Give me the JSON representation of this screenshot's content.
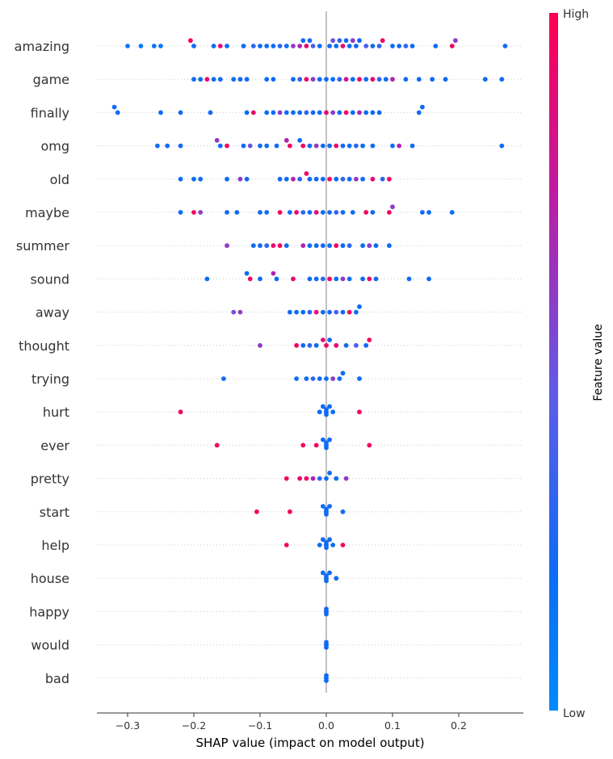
{
  "chart_data": {
    "type": "scatter",
    "subtype": "shap-beeswarm",
    "xlabel": "SHAP value (impact on model output)",
    "xlim": [
      -0.35,
      0.29
    ],
    "xticks": [
      -0.3,
      -0.2,
      -0.1,
      0.0,
      0.1,
      0.2
    ],
    "xtick_labels": [
      "−0.3",
      "−0.2",
      "−0.1",
      "0.0",
      "0.1",
      "0.2"
    ],
    "colorbar": {
      "label": "Feature value",
      "high_label": "High",
      "low_label": "Low",
      "low_color": "#008bfb",
      "high_color": "#ff0052"
    },
    "features": [
      {
        "name": "amazing",
        "points": [
          [
            -0.3,
            0.1
          ],
          [
            -0.28,
            0.1
          ],
          [
            -0.26,
            0.15
          ],
          [
            -0.25,
            0.1
          ],
          [
            -0.205,
            0.95
          ],
          [
            -0.2,
            0.2
          ],
          [
            -0.17,
            0.2
          ],
          [
            -0.16,
            0.9
          ],
          [
            -0.15,
            0.2
          ],
          [
            -0.125,
            0.2
          ],
          [
            -0.11,
            0.3
          ],
          [
            -0.1,
            0.2
          ],
          [
            -0.09,
            0.2
          ],
          [
            -0.08,
            0.2
          ],
          [
            -0.07,
            0.3
          ],
          [
            -0.06,
            0.2
          ],
          [
            -0.05,
            0.6
          ],
          [
            -0.04,
            0.7
          ],
          [
            -0.035,
            0.2
          ],
          [
            -0.03,
            0.9
          ],
          [
            -0.025,
            0.2
          ],
          [
            -0.02,
            0.4
          ],
          [
            -0.01,
            0.2
          ],
          [
            0.005,
            0.2
          ],
          [
            0.01,
            0.5
          ],
          [
            0.015,
            0.2
          ],
          [
            0.02,
            0.3
          ],
          [
            0.025,
            0.9
          ],
          [
            0.03,
            0.2
          ],
          [
            0.035,
            0.2
          ],
          [
            0.04,
            0.6
          ],
          [
            0.045,
            0.2
          ],
          [
            0.05,
            0.2
          ],
          [
            0.06,
            0.4
          ],
          [
            0.07,
            0.2
          ],
          [
            0.08,
            0.3
          ],
          [
            0.085,
            0.9
          ],
          [
            0.1,
            0.2
          ],
          [
            0.11,
            0.2
          ],
          [
            0.12,
            0.3
          ],
          [
            0.13,
            0.2
          ],
          [
            0.165,
            0.2
          ],
          [
            0.19,
            0.95
          ],
          [
            0.195,
            0.6
          ],
          [
            0.27,
            0.2
          ]
        ]
      },
      {
        "name": "game",
        "points": [
          [
            -0.2,
            0.2
          ],
          [
            -0.19,
            0.2
          ],
          [
            -0.18,
            0.9
          ],
          [
            -0.17,
            0.2
          ],
          [
            -0.16,
            0.2
          ],
          [
            -0.14,
            0.2
          ],
          [
            -0.13,
            0.2
          ],
          [
            -0.12,
            0.2
          ],
          [
            -0.09,
            0.2
          ],
          [
            -0.08,
            0.2
          ],
          [
            -0.05,
            0.2
          ],
          [
            -0.04,
            0.3
          ],
          [
            -0.03,
            0.95
          ],
          [
            -0.02,
            0.6
          ],
          [
            -0.01,
            0.2
          ],
          [
            0.0,
            0.2
          ],
          [
            0.01,
            0.2
          ],
          [
            0.02,
            0.3
          ],
          [
            0.03,
            0.8
          ],
          [
            0.04,
            0.2
          ],
          [
            0.05,
            0.9
          ],
          [
            0.06,
            0.2
          ],
          [
            0.07,
            0.9
          ],
          [
            0.08,
            0.3
          ],
          [
            0.09,
            0.2
          ],
          [
            0.1,
            0.7
          ],
          [
            0.12,
            0.2
          ],
          [
            0.14,
            0.2
          ],
          [
            0.16,
            0.2
          ],
          [
            0.18,
            0.2
          ],
          [
            0.24,
            0.2
          ],
          [
            0.265,
            0.2
          ]
        ]
      },
      {
        "name": "finally",
        "points": [
          [
            -0.32,
            0.2
          ],
          [
            -0.315,
            0.2
          ],
          [
            -0.25,
            0.2
          ],
          [
            -0.22,
            0.2
          ],
          [
            -0.175,
            0.2
          ],
          [
            -0.12,
            0.2
          ],
          [
            -0.11,
            0.9
          ],
          [
            -0.09,
            0.2
          ],
          [
            -0.08,
            0.2
          ],
          [
            -0.07,
            0.6
          ],
          [
            -0.06,
            0.2
          ],
          [
            -0.05,
            0.2
          ],
          [
            -0.04,
            0.2
          ],
          [
            -0.03,
            0.3
          ],
          [
            -0.02,
            0.2
          ],
          [
            -0.01,
            0.2
          ],
          [
            0.0,
            0.9
          ],
          [
            0.01,
            0.6
          ],
          [
            0.02,
            0.2
          ],
          [
            0.03,
            0.95
          ],
          [
            0.04,
            0.2
          ],
          [
            0.05,
            0.7
          ],
          [
            0.06,
            0.2
          ],
          [
            0.07,
            0.2
          ],
          [
            0.08,
            0.2
          ],
          [
            0.14,
            0.2
          ],
          [
            0.145,
            0.2
          ]
        ]
      },
      {
        "name": "omg",
        "points": [
          [
            -0.255,
            0.2
          ],
          [
            -0.24,
            0.2
          ],
          [
            -0.22,
            0.2
          ],
          [
            -0.165,
            0.6
          ],
          [
            -0.16,
            0.2
          ],
          [
            -0.15,
            0.95
          ],
          [
            -0.125,
            0.2
          ],
          [
            -0.115,
            0.5
          ],
          [
            -0.1,
            0.2
          ],
          [
            -0.09,
            0.2
          ],
          [
            -0.075,
            0.2
          ],
          [
            -0.06,
            0.7
          ],
          [
            -0.055,
            0.95
          ],
          [
            -0.04,
            0.2
          ],
          [
            -0.035,
            0.95
          ],
          [
            -0.025,
            0.2
          ],
          [
            -0.015,
            0.6
          ],
          [
            -0.005,
            0.2
          ],
          [
            0.005,
            0.2
          ],
          [
            0.015,
            0.9
          ],
          [
            0.025,
            0.2
          ],
          [
            0.035,
            0.2
          ],
          [
            0.045,
            0.3
          ],
          [
            0.055,
            0.2
          ],
          [
            0.07,
            0.2
          ],
          [
            0.1,
            0.2
          ],
          [
            0.11,
            0.7
          ],
          [
            0.13,
            0.2
          ],
          [
            0.265,
            0.2
          ]
        ]
      },
      {
        "name": "old",
        "points": [
          [
            -0.22,
            0.2
          ],
          [
            -0.2,
            0.2
          ],
          [
            -0.19,
            0.2
          ],
          [
            -0.15,
            0.2
          ],
          [
            -0.13,
            0.6
          ],
          [
            -0.12,
            0.2
          ],
          [
            -0.07,
            0.2
          ],
          [
            -0.06,
            0.2
          ],
          [
            -0.05,
            0.7
          ],
          [
            -0.04,
            0.3
          ],
          [
            -0.03,
            0.95
          ],
          [
            -0.025,
            0.2
          ],
          [
            -0.015,
            0.2
          ],
          [
            -0.005,
            0.2
          ],
          [
            0.005,
            0.95
          ],
          [
            0.015,
            0.2
          ],
          [
            0.025,
            0.3
          ],
          [
            0.035,
            0.2
          ],
          [
            0.045,
            0.6
          ],
          [
            0.055,
            0.2
          ],
          [
            0.07,
            0.9
          ],
          [
            0.085,
            0.3
          ],
          [
            0.095,
            0.95
          ]
        ]
      },
      {
        "name": "maybe",
        "points": [
          [
            -0.22,
            0.2
          ],
          [
            -0.2,
            0.95
          ],
          [
            -0.19,
            0.6
          ],
          [
            -0.15,
            0.2
          ],
          [
            -0.135,
            0.2
          ],
          [
            -0.1,
            0.2
          ],
          [
            -0.09,
            0.2
          ],
          [
            -0.07,
            0.95
          ],
          [
            -0.055,
            0.2
          ],
          [
            -0.045,
            0.9
          ],
          [
            -0.035,
            0.3
          ],
          [
            -0.025,
            0.2
          ],
          [
            -0.015,
            0.9
          ],
          [
            -0.005,
            0.2
          ],
          [
            0.005,
            0.2
          ],
          [
            0.015,
            0.3
          ],
          [
            0.025,
            0.2
          ],
          [
            0.04,
            0.2
          ],
          [
            0.06,
            0.95
          ],
          [
            0.07,
            0.2
          ],
          [
            0.095,
            0.95
          ],
          [
            0.1,
            0.6
          ],
          [
            0.145,
            0.2
          ],
          [
            0.155,
            0.2
          ],
          [
            0.19,
            0.2
          ]
        ]
      },
      {
        "name": "summer",
        "points": [
          [
            -0.15,
            0.6
          ],
          [
            -0.11,
            0.2
          ],
          [
            -0.1,
            0.2
          ],
          [
            -0.09,
            0.3
          ],
          [
            -0.08,
            0.9
          ],
          [
            -0.07,
            0.95
          ],
          [
            -0.06,
            0.2
          ],
          [
            -0.035,
            0.7
          ],
          [
            -0.025,
            0.2
          ],
          [
            -0.015,
            0.2
          ],
          [
            -0.005,
            0.2
          ],
          [
            0.005,
            0.2
          ],
          [
            0.015,
            0.95
          ],
          [
            0.025,
            0.2
          ],
          [
            0.035,
            0.3
          ],
          [
            0.055,
            0.2
          ],
          [
            0.065,
            0.6
          ],
          [
            0.075,
            0.2
          ],
          [
            0.095,
            0.2
          ]
        ]
      },
      {
        "name": "sound",
        "points": [
          [
            -0.18,
            0.2
          ],
          [
            -0.12,
            0.2
          ],
          [
            -0.115,
            0.95
          ],
          [
            -0.1,
            0.2
          ],
          [
            -0.08,
            0.7
          ],
          [
            -0.075,
            0.2
          ],
          [
            -0.05,
            0.9
          ],
          [
            -0.025,
            0.2
          ],
          [
            -0.015,
            0.2
          ],
          [
            -0.005,
            0.3
          ],
          [
            0.005,
            0.95
          ],
          [
            0.015,
            0.2
          ],
          [
            0.025,
            0.6
          ],
          [
            0.035,
            0.2
          ],
          [
            0.055,
            0.2
          ],
          [
            0.065,
            0.9
          ],
          [
            0.075,
            0.2
          ],
          [
            0.125,
            0.2
          ],
          [
            0.155,
            0.2
          ]
        ]
      },
      {
        "name": "away",
        "points": [
          [
            -0.14,
            0.5
          ],
          [
            -0.13,
            0.6
          ],
          [
            -0.055,
            0.2
          ],
          [
            -0.045,
            0.2
          ],
          [
            -0.035,
            0.2
          ],
          [
            -0.025,
            0.3
          ],
          [
            -0.015,
            0.9
          ],
          [
            -0.005,
            0.2
          ],
          [
            0.005,
            0.2
          ],
          [
            0.015,
            0.4
          ],
          [
            0.025,
            0.2
          ],
          [
            0.035,
            0.95
          ],
          [
            0.045,
            0.2
          ],
          [
            0.05,
            0.2
          ]
        ]
      },
      {
        "name": "thought",
        "points": [
          [
            -0.1,
            0.6
          ],
          [
            -0.045,
            0.95
          ],
          [
            -0.035,
            0.2
          ],
          [
            -0.025,
            0.3
          ],
          [
            -0.015,
            0.2
          ],
          [
            -0.005,
            0.9
          ],
          [
            0.0,
            0.95
          ],
          [
            0.005,
            0.2
          ],
          [
            0.015,
            0.9
          ],
          [
            0.03,
            0.2
          ],
          [
            0.045,
            0.4
          ],
          [
            0.06,
            0.2
          ],
          [
            0.065,
            0.95
          ]
        ]
      },
      {
        "name": "trying",
        "points": [
          [
            -0.155,
            0.2
          ],
          [
            -0.045,
            0.2
          ],
          [
            -0.03,
            0.2
          ],
          [
            -0.02,
            0.3
          ],
          [
            -0.01,
            0.2
          ],
          [
            0.0,
            0.2
          ],
          [
            0.01,
            0.6
          ],
          [
            0.02,
            0.2
          ],
          [
            0.025,
            0.2
          ],
          [
            0.05,
            0.2
          ]
        ]
      },
      {
        "name": "hurt",
        "points": [
          [
            -0.22,
            0.95
          ],
          [
            -0.01,
            0.2
          ],
          [
            -0.005,
            0.2
          ],
          [
            0.0,
            0.2
          ],
          [
            0.005,
            0.2
          ],
          [
            0.01,
            0.2
          ],
          [
            0.05,
            0.95
          ]
        ]
      },
      {
        "name": "ever",
        "points": [
          [
            -0.165,
            0.95
          ],
          [
            -0.035,
            0.95
          ],
          [
            -0.015,
            0.95
          ],
          [
            -0.005,
            0.2
          ],
          [
            0.0,
            0.2
          ],
          [
            0.005,
            0.2
          ],
          [
            0.065,
            0.95
          ]
        ]
      },
      {
        "name": "pretty",
        "points": [
          [
            -0.06,
            0.95
          ],
          [
            -0.04,
            0.9
          ],
          [
            -0.03,
            0.95
          ],
          [
            -0.02,
            0.7
          ],
          [
            -0.01,
            0.3
          ],
          [
            0.0,
            0.2
          ],
          [
            0.005,
            0.2
          ],
          [
            0.015,
            0.2
          ],
          [
            0.03,
            0.6
          ]
        ]
      },
      {
        "name": "start",
        "points": [
          [
            -0.105,
            0.95
          ],
          [
            -0.055,
            0.95
          ],
          [
            -0.005,
            0.2
          ],
          [
            0.0,
            0.2
          ],
          [
            0.005,
            0.2
          ],
          [
            0.025,
            0.2
          ]
        ]
      },
      {
        "name": "help",
        "points": [
          [
            -0.06,
            0.95
          ],
          [
            -0.01,
            0.2
          ],
          [
            -0.005,
            0.2
          ],
          [
            0.0,
            0.2
          ],
          [
            0.005,
            0.2
          ],
          [
            0.01,
            0.2
          ],
          [
            0.025,
            0.95
          ]
        ]
      },
      {
        "name": "house",
        "points": [
          [
            -0.005,
            0.2
          ],
          [
            0.0,
            0.2
          ],
          [
            0.005,
            0.2
          ],
          [
            0.015,
            0.2
          ]
        ]
      },
      {
        "name": "happy",
        "points": [
          [
            0.0,
            0.2
          ]
        ]
      },
      {
        "name": "would",
        "points": [
          [
            0.0,
            0.2
          ]
        ]
      },
      {
        "name": "bad",
        "points": [
          [
            0.0,
            0.2
          ]
        ]
      }
    ]
  }
}
